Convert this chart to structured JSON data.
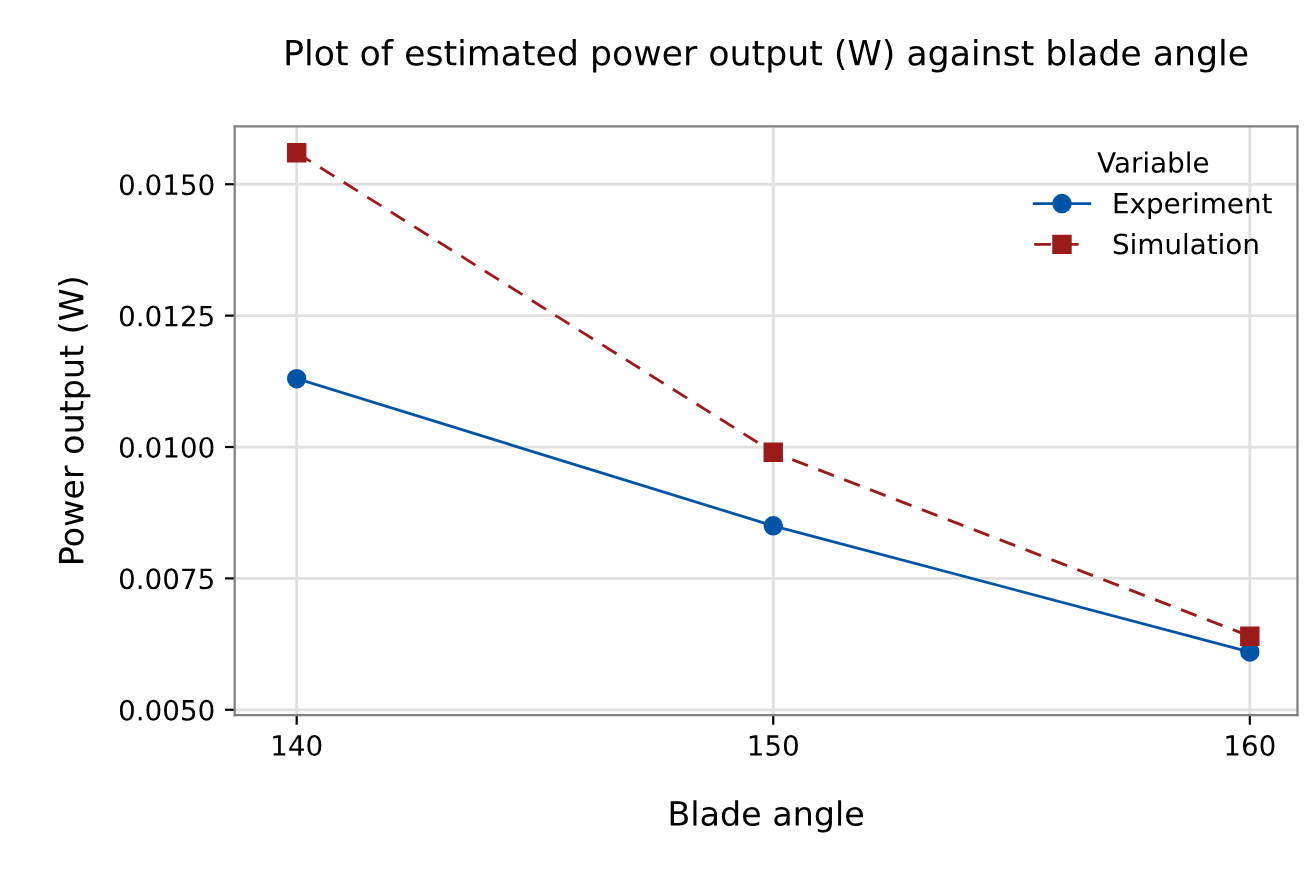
{
  "chart_data": {
    "type": "line",
    "title": "Plot of estimated power output (W) against blade angle",
    "xlabel": "Blade angle",
    "ylabel": "Power output (W)",
    "legend_title": "Variable",
    "x": [
      140,
      150,
      160
    ],
    "series": [
      {
        "name": "Experiment",
        "color": "#0054a6",
        "values": [
          0.0113,
          0.0085,
          0.0061
        ],
        "marker": "circle",
        "line_style": "solid"
      },
      {
        "name": "Simulation",
        "color": "#9b1b1b",
        "values": [
          0.0156,
          0.0099,
          0.0064
        ],
        "marker": "square",
        "line_style": "dashed"
      }
    ],
    "xlim": [
      138.7,
      161
    ],
    "xticks": [
      140,
      150,
      160
    ],
    "ylim": [
      0.0049,
      0.0161
    ],
    "yticks": [
      {
        "value": 0.005,
        "label": "0.0050"
      },
      {
        "value": 0.0075,
        "label": "0.0075"
      },
      {
        "value": 0.01,
        "label": "0.0100"
      },
      {
        "value": 0.0125,
        "label": "0.0125"
      },
      {
        "value": 0.015,
        "label": "0.0150"
      }
    ],
    "grid": true,
    "legend": "top right"
  }
}
